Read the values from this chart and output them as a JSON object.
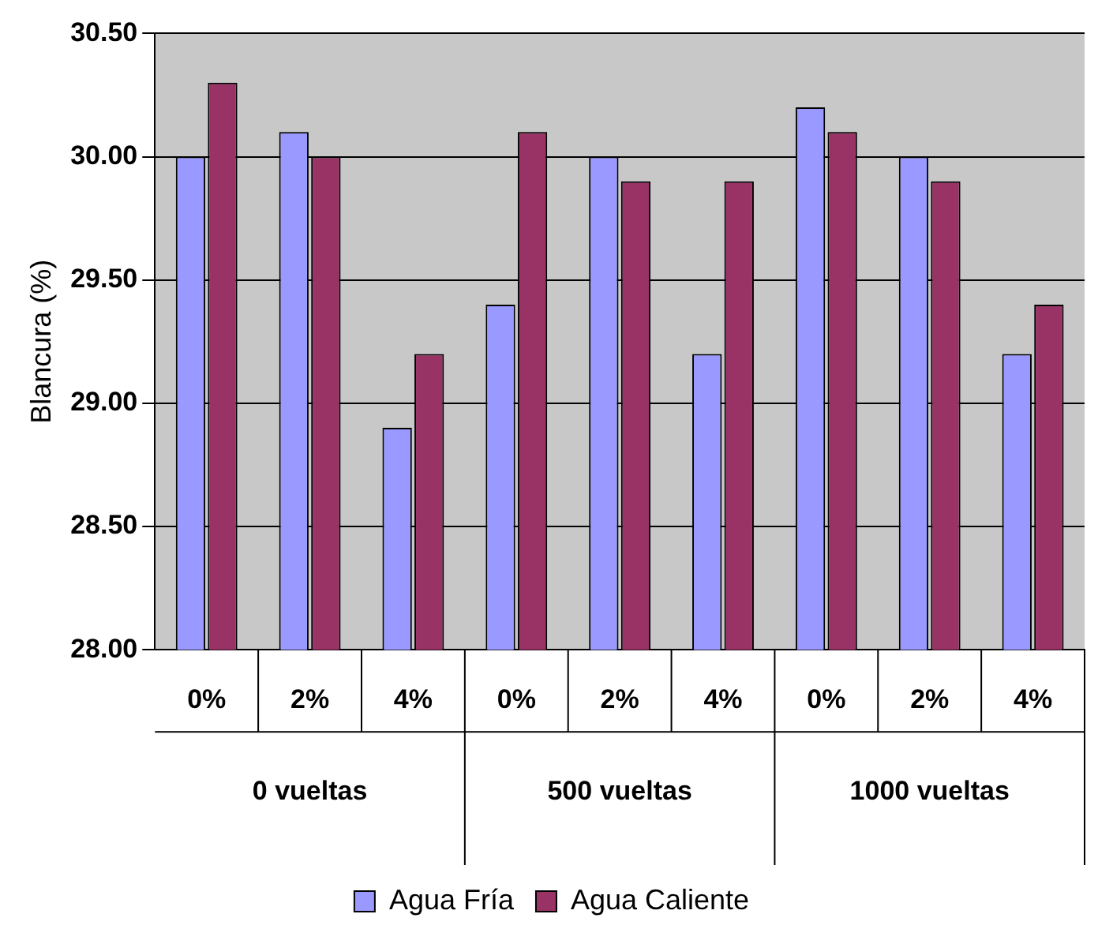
{
  "chart_data": {
    "type": "bar",
    "ylabel": "Blancura (%)",
    "categories": [
      "0%",
      "2%",
      "4%",
      "0%",
      "2%",
      "4%",
      "0%",
      "2%",
      "4%"
    ],
    "annotations": [
      "0 vueltas",
      "500 vueltas",
      "1000 vueltas"
    ],
    "series": [
      {
        "name": "Agua Fría",
        "color": "#9999ff",
        "values": [
          30.0,
          30.1,
          28.9,
          29.4,
          30.0,
          29.2,
          30.2,
          30.0,
          29.2
        ]
      },
      {
        "name": "Agua Caliente",
        "color": "#993366",
        "values": [
          30.3,
          30.0,
          29.2,
          30.1,
          29.9,
          29.9,
          30.1,
          29.9,
          29.4
        ]
      }
    ],
    "ylim": [
      28,
      30.5
    ],
    "yticks": [
      {
        "value": 28,
        "label": "28.00"
      },
      {
        "value": 28.5,
        "label": "28.50"
      },
      {
        "value": 29,
        "label": "29.00"
      },
      {
        "value": 29.5,
        "label": "29.50"
      },
      {
        "value": 30,
        "label": "30.00"
      },
      {
        "value": 30.5,
        "label": "30.50"
      }
    ],
    "grid": "y",
    "legend": "bottom"
  }
}
